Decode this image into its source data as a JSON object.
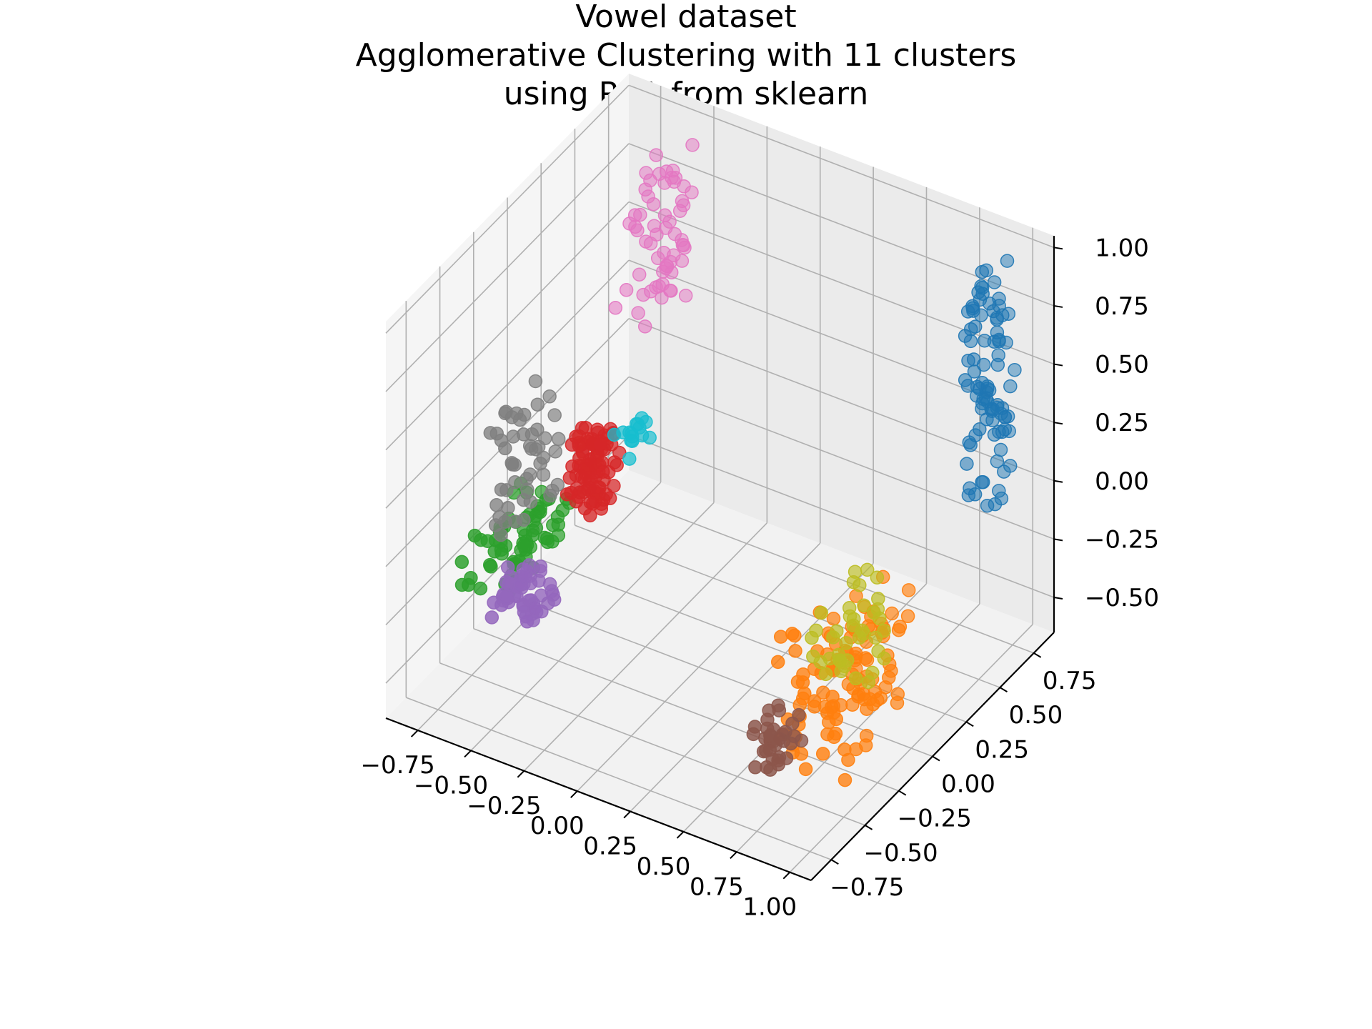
{
  "chart_data": {
    "type": "scatter",
    "projection": "3d",
    "title_lines": [
      "Vowel dataset",
      "Agglomerative Clustering with 11 clusters",
      "using PCA from sklearn"
    ],
    "xlabel": "",
    "ylabel": "",
    "zlabel": "",
    "grid": true,
    "legend": "none",
    "x_ticks": [
      "−0.75",
      "−0.50",
      "−0.25",
      "0.00",
      "0.25",
      "0.50",
      "0.75",
      "1.00"
    ],
    "y_ticks": [
      "−0.75",
      "−0.50",
      "−0.25",
      "0.00",
      "0.25",
      "0.50",
      "0.75"
    ],
    "z_ticks": [
      "−0.50",
      "−0.25",
      "0.00",
      "0.25",
      "0.50",
      "0.75",
      "1.00"
    ],
    "xlim": [
      -0.9,
      1.1
    ],
    "ylim": [
      -0.9,
      0.9
    ],
    "zlim": [
      -0.65,
      1.05
    ],
    "clusters": [
      {
        "color": "#1f77b4",
        "x_range": [
          0.9,
          1.0
        ],
        "y_range": [
          0.5,
          0.8
        ],
        "z_range": [
          0.0,
          1.0
        ],
        "n": 90
      },
      {
        "color": "#ff7f0e",
        "x_range": [
          0.6,
          0.9
        ],
        "y_range": [
          -0.4,
          0.2
        ],
        "z_range": [
          -0.65,
          -0.1
        ],
        "n": 110
      },
      {
        "color": "#2ca02c",
        "x_range": [
          -0.8,
          -0.55
        ],
        "y_range": [
          -0.5,
          0.0
        ],
        "z_range": [
          -0.3,
          -0.05
        ],
        "n": 70
      },
      {
        "color": "#d62728",
        "x_range": [
          -0.45,
          -0.3
        ],
        "y_range": [
          -0.3,
          -0.1
        ],
        "z_range": [
          0.05,
          0.35
        ],
        "n": 90
      },
      {
        "color": "#9467bd",
        "x_range": [
          -0.65,
          -0.45
        ],
        "y_range": [
          -0.55,
          -0.3
        ],
        "z_range": [
          -0.35,
          -0.2
        ],
        "n": 50
      },
      {
        "color": "#8c564b",
        "x_range": [
          0.55,
          0.7
        ],
        "y_range": [
          -0.5,
          -0.3
        ],
        "z_range": [
          -0.6,
          -0.4
        ],
        "n": 35
      },
      {
        "color": "#e377c2",
        "x_range": [
          -0.65,
          -0.45
        ],
        "y_range": [
          0.4,
          0.75
        ],
        "z_range": [
          0.3,
          1.0
        ],
        "n": 60
      },
      {
        "color": "#7f7f7f",
        "x_range": [
          -0.8,
          -0.7
        ],
        "y_range": [
          -0.3,
          0.1
        ],
        "z_range": [
          -0.2,
          0.3
        ],
        "n": 50
      },
      {
        "color": "#bcbd22",
        "x_range": [
          0.6,
          0.85
        ],
        "y_range": [
          -0.2,
          0.2
        ],
        "z_range": [
          -0.4,
          -0.05
        ],
        "n": 40
      },
      {
        "color": "#17becf",
        "x_range": [
          -0.35,
          -0.25
        ],
        "y_range": [
          -0.1,
          0.05
        ],
        "z_range": [
          0.2,
          0.3
        ],
        "n": 15
      }
    ]
  }
}
